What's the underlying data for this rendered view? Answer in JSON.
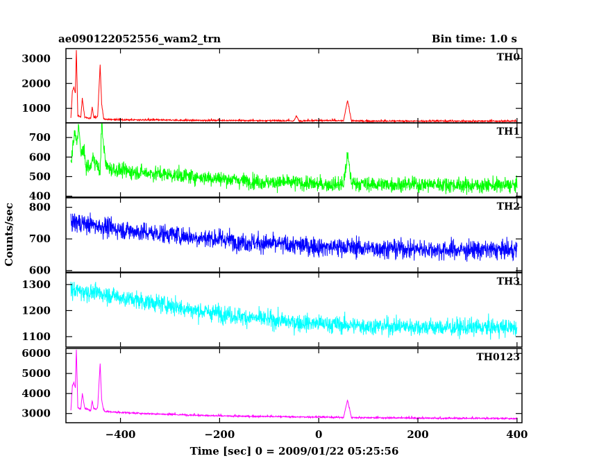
{
  "header": {
    "title": "ae090122052556_wam2_trn",
    "bin_time": "Bin time: 1.0 s"
  },
  "axes": {
    "xlabel": "Time [sec] 0 = 2009/01/22 05:25:56",
    "ylabel": "Counts/sec",
    "xlim": [
      -510,
      410
    ],
    "xticks": [
      -400,
      -200,
      0,
      200,
      400
    ],
    "xtick_labels": [
      "−400",
      "−200",
      "0",
      "200",
      "400"
    ]
  },
  "chart_data": [
    {
      "type": "line",
      "name": "TH0",
      "color": "#ff0000",
      "ylim": [
        420,
        3400
      ],
      "yticks": [
        1000,
        2000,
        3000
      ],
      "ytick_labels": [
        "1000",
        "2000",
        "3000"
      ],
      "x": [
        -500,
        -497,
        -494,
        -491,
        -489,
        -486,
        -483,
        -480,
        -477,
        -472,
        -466,
        -460,
        -457,
        -454,
        -450,
        -446,
        -441,
        -438,
        -434,
        -430,
        -420,
        -400,
        -350,
        -300,
        -250,
        -200,
        -150,
        -100,
        -50,
        -45,
        -40,
        0,
        50,
        58,
        66,
        100,
        150,
        200,
        250,
        300,
        350,
        400
      ],
      "y": [
        600,
        1700,
        1850,
        1600,
        3350,
        700,
        680,
        650,
        1400,
        650,
        620,
        600,
        1050,
        640,
        620,
        700,
        2750,
        1200,
        600,
        560,
        560,
        540,
        540,
        530,
        520,
        520,
        510,
        510,
        500,
        700,
        500,
        520,
        500,
        1330,
        500,
        490,
        490,
        490,
        490,
        490,
        490,
        490
      ]
    },
    {
      "type": "line",
      "name": "TH1",
      "color": "#00ff00",
      "ylim": [
        395,
        775
      ],
      "yticks": [
        400,
        500,
        600,
        700
      ],
      "ytick_labels": [
        "400",
        "500",
        "600",
        "700"
      ],
      "x": [
        -500,
        -496,
        -492,
        -488,
        -484,
        -480,
        -476,
        -470,
        -462,
        -455,
        -448,
        -441,
        -438,
        -430,
        -420,
        -400,
        -350,
        -300,
        -250,
        -200,
        -150,
        -100,
        -50,
        0,
        50,
        58,
        66,
        100,
        150,
        200,
        250,
        300,
        350,
        400
      ],
      "y": [
        560,
        650,
        720,
        680,
        770,
        600,
        650,
        560,
        540,
        600,
        560,
        520,
        770,
        560,
        540,
        530,
        520,
        510,
        500,
        490,
        480,
        470,
        470,
        460,
        460,
        610,
        470,
        460,
        460,
        460,
        460,
        455,
        455,
        455
      ]
    },
    {
      "type": "line",
      "name": "TH2",
      "color": "#0000ff",
      "ylim": [
        595,
        830
      ],
      "yticks": [
        600,
        700,
        800
      ],
      "ytick_labels": [
        "600",
        "700",
        "800"
      ],
      "x": [
        -500,
        -480,
        -460,
        -440,
        -420,
        -400,
        -350,
        -300,
        -250,
        -200,
        -150,
        -100,
        -50,
        0,
        50,
        100,
        150,
        200,
        250,
        300,
        350,
        400
      ],
      "y": [
        755,
        750,
        745,
        740,
        735,
        730,
        720,
        715,
        705,
        700,
        690,
        685,
        680,
        675,
        675,
        670,
        670,
        668,
        665,
        665,
        665,
        665
      ]
    },
    {
      "type": "line",
      "name": "TH3",
      "color": "#00ffff",
      "ylim": [
        1060,
        1345
      ],
      "yticks": [
        1100,
        1200,
        1300
      ],
      "ytick_labels": [
        "1100",
        "1200",
        "1300"
      ],
      "x": [
        -500,
        -480,
        -460,
        -440,
        -420,
        -400,
        -350,
        -300,
        -250,
        -200,
        -150,
        -100,
        -50,
        0,
        50,
        100,
        150,
        200,
        250,
        300,
        350,
        400
      ],
      "y": [
        1280,
        1275,
        1270,
        1265,
        1260,
        1250,
        1235,
        1220,
        1200,
        1190,
        1175,
        1165,
        1155,
        1150,
        1145,
        1140,
        1140,
        1138,
        1135,
        1135,
        1135,
        1135
      ]
    },
    {
      "type": "line",
      "name": "TH0123",
      "color": "#ff00ff",
      "ylim": [
        2540,
        6250
      ],
      "yticks": [
        3000,
        4000,
        5000,
        6000
      ],
      "ytick_labels": [
        "3000",
        "4000",
        "5000",
        "6000"
      ],
      "x": [
        -500,
        -497,
        -494,
        -491,
        -489,
        -486,
        -483,
        -480,
        -477,
        -472,
        -466,
        -460,
        -457,
        -454,
        -450,
        -446,
        -441,
        -438,
        -434,
        -430,
        -420,
        -400,
        -350,
        -300,
        -250,
        -200,
        -150,
        -100,
        -50,
        0,
        50,
        58,
        66,
        100,
        150,
        200,
        250,
        300,
        350,
        400
      ],
      "y": [
        3150,
        4400,
        4550,
        4300,
        6200,
        3300,
        3250,
        3200,
        4000,
        3250,
        3200,
        3150,
        3650,
        3250,
        3200,
        3300,
        5500,
        3700,
        3150,
        3100,
        3080,
        3050,
        3000,
        2950,
        2920,
        2880,
        2860,
        2850,
        2830,
        2820,
        2800,
        3680,
        2800,
        2790,
        2780,
        2770,
        2760,
        2760,
        2755,
        2750
      ]
    }
  ]
}
